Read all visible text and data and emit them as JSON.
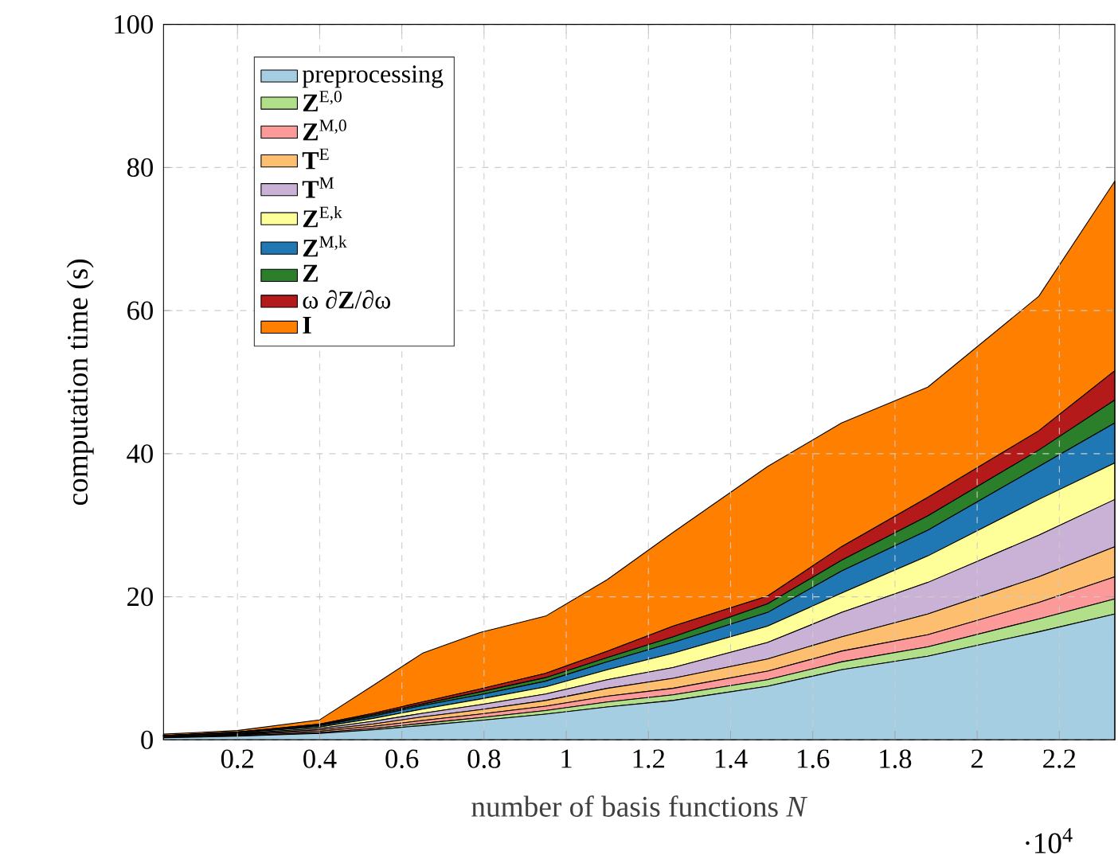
{
  "chart_data": {
    "type": "area",
    "stacked": true,
    "xlabel": "number of basis functions *N*",
    "ylabel": "computation time (s)",
    "annotations": [
      "·10$^{4}$"
    ],
    "x": [
      0.02,
      0.2,
      0.4,
      0.53,
      0.65,
      0.79,
      0.95,
      1.1,
      1.26,
      1.49,
      1.67,
      1.88,
      2.15,
      2.335
    ],
    "xlim": [
      0.02,
      2.335
    ],
    "ylim": [
      0,
      100
    ],
    "xticks": [
      0.2,
      0.4,
      0.6,
      0.8,
      1,
      1.2,
      1.4,
      1.6,
      1.8,
      2,
      2.2
    ],
    "yticks": [
      0,
      20,
      40,
      60,
      80,
      100
    ],
    "grid": true,
    "legend": "top left",
    "series": [
      {
        "name": "preprocessing",
        "color": "#a6cee3",
        "values": [
          0.3,
          0.5,
          0.9,
          1.4,
          2.0,
          2.7,
          3.6,
          4.6,
          5.5,
          7.5,
          9.8,
          11.7,
          15.1,
          17.6
        ]
      },
      {
        "name": "**Z**$^{E,0}$",
        "color": "#b2df8a",
        "values": [
          0.1,
          0.1,
          0.1,
          0.2,
          0.3,
          0.4,
          0.5,
          0.7,
          0.8,
          0.9,
          1.1,
          1.3,
          1.8,
          2.1
        ]
      },
      {
        "name": "**Z**$^{M,0}$",
        "color": "#fb9a99",
        "values": [
          0.1,
          0.1,
          0.2,
          0.3,
          0.4,
          0.5,
          0.6,
          0.8,
          0.9,
          1.2,
          1.5,
          1.7,
          2.3,
          3.1
        ]
      },
      {
        "name": "**T**$^{E}$",
        "color": "#fdbf6f",
        "values": [
          0.1,
          0.1,
          0.2,
          0.3,
          0.5,
          0.6,
          0.8,
          1.1,
          1.4,
          1.7,
          2.0,
          2.9,
          3.6,
          4.2
        ]
      },
      {
        "name": "**T**$^{M}$",
        "color": "#cab2d6",
        "values": [
          0,
          0.1,
          0.2,
          0.4,
          0.5,
          0.7,
          0.9,
          1.2,
          1.5,
          2.3,
          3.4,
          4.4,
          5.8,
          6.6
        ]
      },
      {
        "name": "**Z**$^{E,k}$",
        "color": "#ffff99",
        "values": [
          0,
          0.1,
          0.2,
          0.4,
          0.6,
          0.8,
          1.0,
          1.4,
          2.0,
          2.3,
          2.7,
          3.7,
          5.0,
          5.1
        ]
      },
      {
        "name": "**Z**$^{M,k}$",
        "color": "#1f78b4",
        "values": [
          0,
          0.1,
          0.2,
          0.3,
          0.5,
          0.6,
          0.8,
          1.1,
          1.5,
          1.9,
          3.1,
          3.6,
          4.6,
          5.6
        ]
      },
      {
        "name": "**Z**",
        "color": "#2c7f2a",
        "values": [
          0,
          0,
          0.1,
          0.2,
          0.2,
          0.4,
          0.5,
          0.6,
          0.8,
          1.2,
          1.5,
          2.0,
          2.3,
          3.2
        ]
      },
      {
        "name": "ω ∂**Z**/∂ω",
        "color": "#b41a1a",
        "values": [
          0,
          0,
          0.1,
          0.2,
          0.3,
          0.4,
          0.6,
          0.9,
          1.5,
          1.1,
          1.9,
          2.6,
          2.7,
          4.1
        ]
      },
      {
        "name": "**I**",
        "color": "#ff7f00",
        "values": [
          0.2,
          0.2,
          0.6,
          3.9,
          6.8,
          7.9,
          8.0,
          10.0,
          13.1,
          18.1,
          17.3,
          15.4,
          18.8,
          26.5
        ]
      }
    ]
  }
}
